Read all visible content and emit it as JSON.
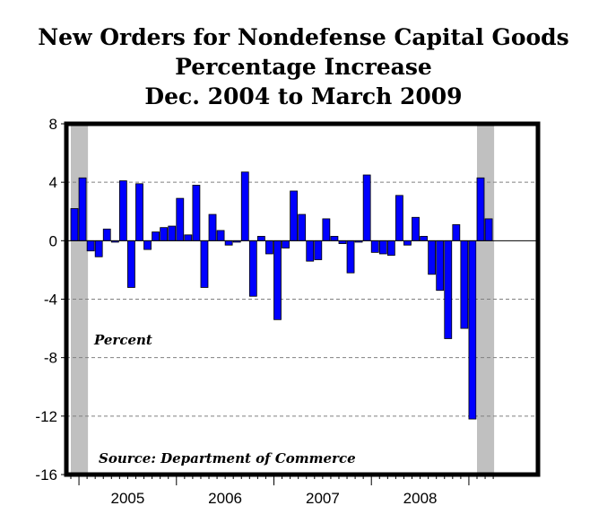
{
  "title_lines": [
    "New Orders for Nondefense Capital Goods",
    "Percentage Increase",
    "Dec. 2004 to March 2009"
  ],
  "annotations": {
    "units_label": "Percent",
    "source": "Source: Department of Commerce"
  },
  "colors": {
    "bar": "#0000ff",
    "bar_outline": "#000000",
    "recession_shade": "#c0c0c0",
    "grid": "#808080",
    "frame": "#000000"
  },
  "chart_data": {
    "type": "bar",
    "title": "New Orders for Nondefense Capital Goods Percentage Increase Dec. 2004 to March 2009",
    "ylabel": "Percent",
    "ylim": [
      -16,
      8
    ],
    "yticks": [
      8,
      4,
      0,
      -4,
      -8,
      -12,
      -16
    ],
    "year_labels": [
      "2005",
      "2006",
      "2007",
      "2008"
    ],
    "grid": "horizontal dashed",
    "start": "2004-12",
    "frequency": "monthly",
    "categories": [
      "2004-12",
      "2005-01",
      "2005-02",
      "2005-03",
      "2005-04",
      "2005-05",
      "2005-06",
      "2005-07",
      "2005-08",
      "2005-09",
      "2005-10",
      "2005-11",
      "2005-12",
      "2006-01",
      "2006-02",
      "2006-03",
      "2006-04",
      "2006-05",
      "2006-06",
      "2006-07",
      "2006-08",
      "2006-09",
      "2006-10",
      "2006-11",
      "2006-12",
      "2007-01",
      "2007-02",
      "2007-03",
      "2007-04",
      "2007-05",
      "2007-06",
      "2007-07",
      "2007-08",
      "2007-09",
      "2007-10",
      "2007-11",
      "2007-12",
      "2008-01",
      "2008-02",
      "2008-03",
      "2008-04",
      "2008-05",
      "2008-06",
      "2008-07",
      "2008-08",
      "2008-09",
      "2008-10",
      "2008-11",
      "2008-12",
      "2009-01",
      "2009-02",
      "2009-03"
    ],
    "values": [
      2.2,
      4.3,
      -0.7,
      -1.1,
      0.8,
      -0.1,
      4.1,
      -3.2,
      3.9,
      -0.6,
      0.6,
      0.9,
      1.0,
      2.9,
      0.4,
      3.8,
      -3.2,
      1.8,
      0.7,
      -0.3,
      -0.1,
      4.7,
      -3.8,
      0.3,
      -0.9,
      -5.4,
      -0.5,
      3.4,
      1.8,
      -1.4,
      -1.3,
      1.5,
      0.3,
      -0.2,
      -2.2,
      -0.1,
      4.5,
      -0.8,
      -0.9,
      -1.0,
      3.1,
      -0.3,
      1.6,
      0.3,
      -2.3,
      -3.4,
      -6.7,
      1.1,
      -6.0,
      -12.2,
      4.3,
      1.5
    ],
    "recessions": [
      {
        "start": "2004-12",
        "end": "2005-01"
      },
      {
        "start": "2009-02",
        "end": "2009-03"
      }
    ]
  }
}
